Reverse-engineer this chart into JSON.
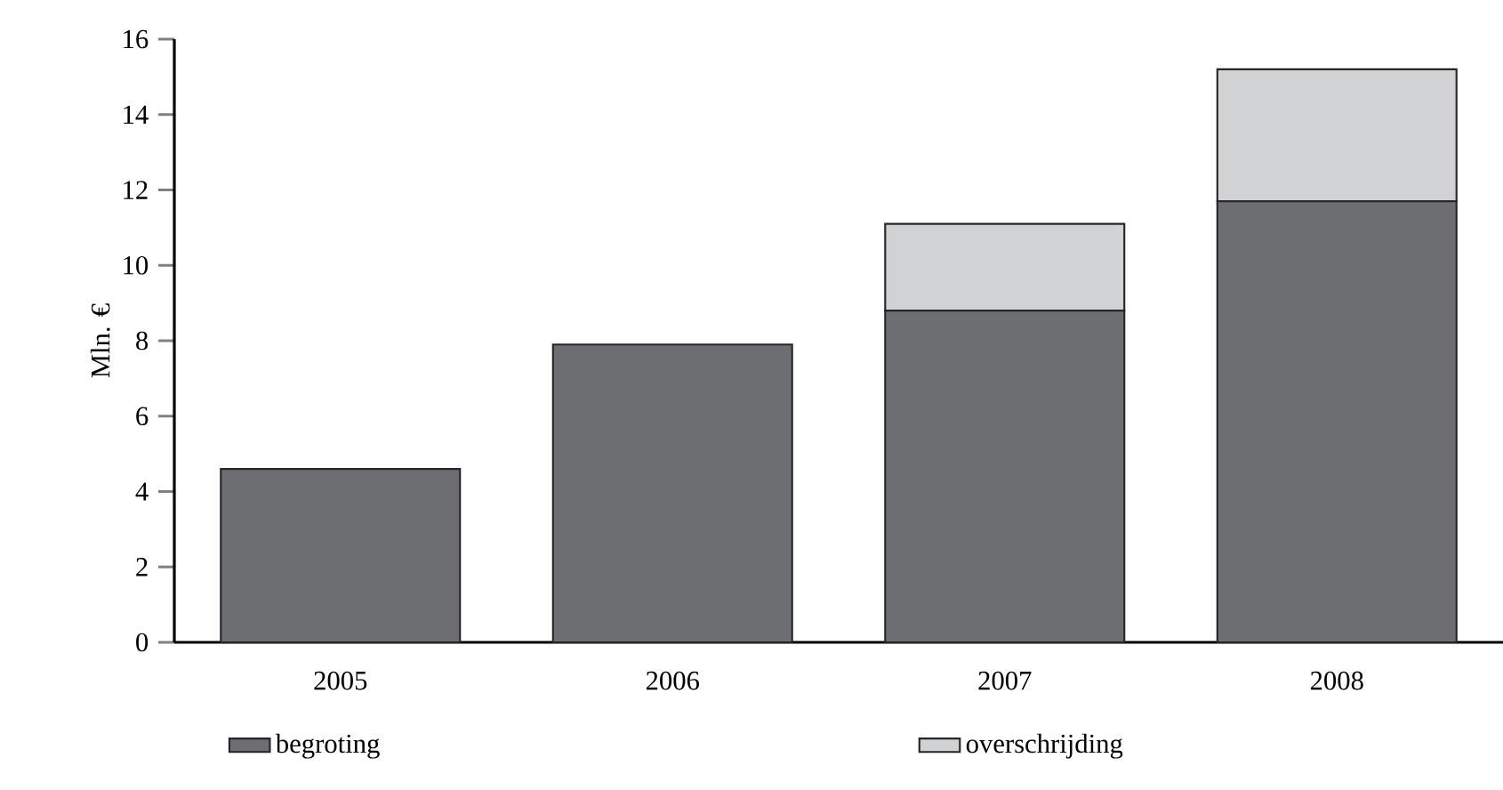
{
  "chart_data": {
    "type": "bar",
    "ylabel": "Mln. €",
    "stacked": true,
    "legend": "bottom",
    "categories": [
      "2005",
      "2006",
      "2007",
      "2008"
    ],
    "series": [
      {
        "name": "begroting",
        "color": "#6d6e71",
        "values": [
          4.6,
          7.9,
          8.8,
          11.7
        ]
      },
      {
        "name": "overschrijding",
        "color": "#d1d2d4",
        "values": [
          0,
          0,
          2.3,
          3.5
        ]
      }
    ],
    "ylim": [
      0,
      16
    ],
    "yticks": [
      0,
      2,
      4,
      6,
      8,
      10,
      12,
      14,
      16
    ]
  }
}
